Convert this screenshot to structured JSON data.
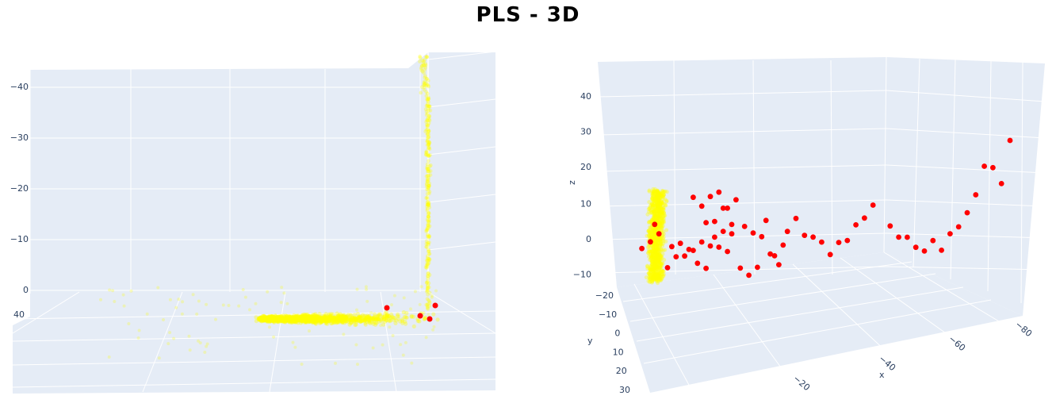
{
  "title": "PLS - 3D",
  "colors": {
    "background": "#ffffff",
    "pane": "#e5ecf6",
    "grid": "#ffffff",
    "tick_text": "#2a3f5f",
    "points_yellow": "#ffff00",
    "points_red": "#ff0000"
  },
  "chart_data": [
    {
      "type": "scatter3d",
      "view": "left",
      "z_ticks": [
        "−40",
        "−30",
        "−20",
        "−10",
        "0"
      ],
      "side_tick": "40",
      "legend": "none",
      "grid": true
    },
    {
      "type": "scatter3d",
      "view": "right",
      "z_ticks": [
        "40",
        "30",
        "20",
        "10",
        "0",
        "−10"
      ],
      "y_ticks": [
        "−20",
        "−10",
        "0",
        "10",
        "20",
        "30"
      ],
      "x_ticks": [
        "−20",
        "−40",
        "−60",
        "−80"
      ],
      "xlabel": "x",
      "ylabel": "y",
      "zlabel": "z",
      "legend": "none",
      "grid": true,
      "red_points": [
        [
          -3,
          -2,
          7
        ],
        [
          -2,
          3,
          6
        ],
        [
          -4,
          0,
          3
        ],
        [
          -6,
          -4,
          0
        ],
        [
          0,
          2,
          -4
        ],
        [
          1,
          0,
          1
        ],
        [
          2,
          -3,
          -3
        ],
        [
          3,
          1,
          2
        ],
        [
          4,
          0,
          -2
        ],
        [
          5,
          -2,
          -1
        ],
        [
          6,
          2,
          0
        ],
        [
          7,
          4,
          -3
        ],
        [
          8,
          -1,
          1
        ],
        [
          9,
          3,
          -5
        ],
        [
          10,
          0,
          0
        ],
        [
          11,
          2,
          3
        ],
        [
          12,
          -4,
          -2
        ],
        [
          13,
          1,
          4
        ],
        [
          14,
          3,
          -1
        ],
        [
          15,
          -2,
          2
        ],
        [
          6,
          0,
          14
        ],
        [
          8,
          2,
          12
        ],
        [
          10,
          -2,
          13
        ],
        [
          12,
          1,
          15
        ],
        [
          14,
          3,
          11
        ],
        [
          16,
          0,
          12
        ],
        [
          9,
          4,
          8
        ],
        [
          11,
          1,
          7
        ],
        [
          13,
          -3,
          9
        ],
        [
          15,
          2,
          6
        ],
        [
          18,
          -1,
          4
        ],
        [
          20,
          2,
          3
        ],
        [
          22,
          0,
          1
        ],
        [
          24,
          3,
          -3
        ],
        [
          26,
          -2,
          -8
        ],
        [
          28,
          1,
          2
        ],
        [
          30,
          0,
          5
        ],
        [
          32,
          -3,
          -1
        ],
        [
          34,
          2,
          0
        ],
        [
          36,
          1,
          -2
        ],
        [
          38,
          3,
          -5
        ],
        [
          40,
          0,
          -3
        ],
        [
          42,
          2,
          -2
        ],
        [
          44,
          -1,
          1
        ],
        [
          46,
          0,
          3
        ],
        [
          48,
          2,
          7
        ],
        [
          52,
          0,
          0
        ],
        [
          54,
          1,
          -3
        ],
        [
          56,
          -1,
          -4
        ],
        [
          58,
          2,
          -6
        ],
        [
          60,
          0,
          -8
        ],
        [
          62,
          1,
          -5
        ],
        [
          64,
          -2,
          -9
        ],
        [
          66,
          0,
          -4
        ],
        [
          68,
          1,
          -2
        ],
        [
          70,
          2,
          2
        ],
        [
          72,
          0,
          6
        ],
        [
          74,
          1,
          14
        ],
        [
          76,
          0,
          13
        ],
        [
          78,
          2,
          9
        ],
        [
          80,
          0,
          20
        ],
        [
          17,
          3,
          -6
        ],
        [
          19,
          -2,
          -10
        ],
        [
          21,
          1,
          -7
        ],
        [
          23,
          -1,
          5
        ],
        [
          25,
          2,
          -4
        ],
        [
          27,
          0,
          -2
        ]
      ]
    }
  ]
}
